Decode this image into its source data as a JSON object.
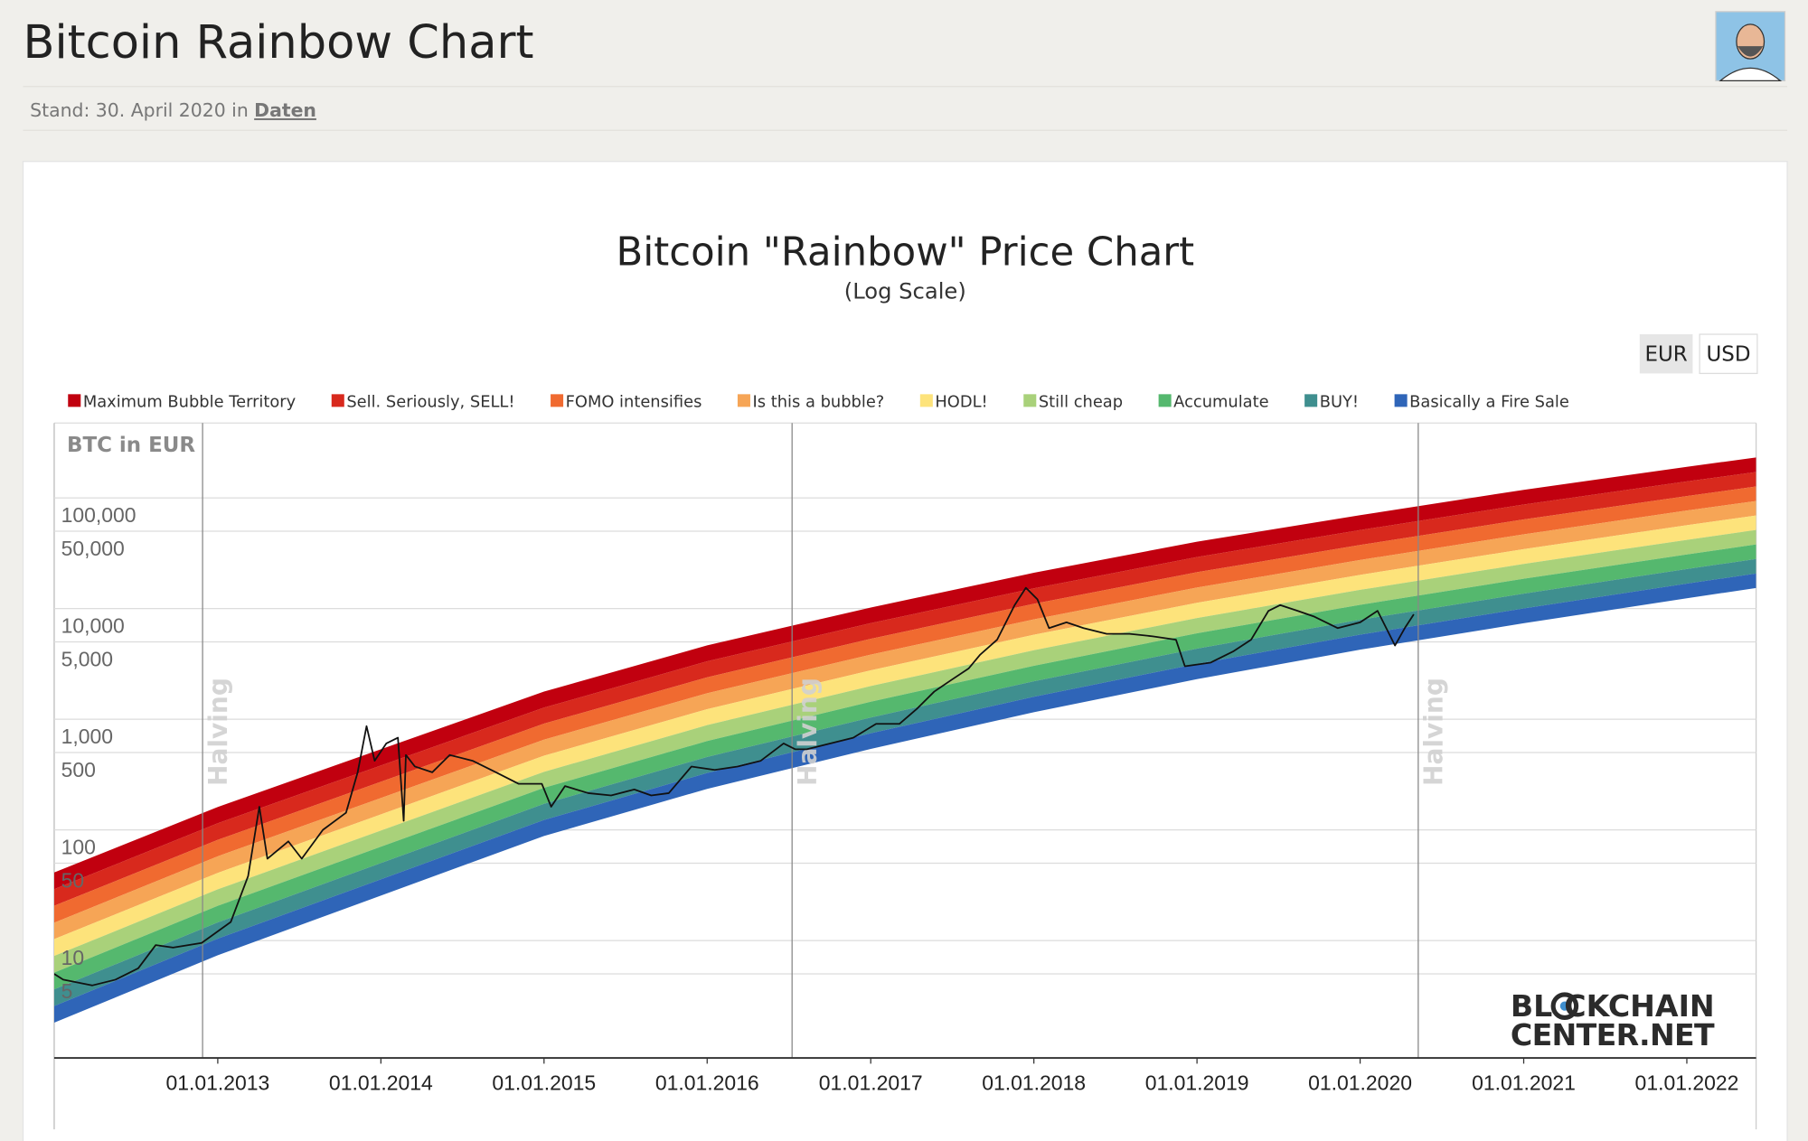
{
  "page": {
    "title": "Bitcoin Rainbow Chart",
    "meta_prefix": "Stand: 30. April 2020 in",
    "meta_link": "Daten",
    "currency_buttons": [
      "EUR",
      "USD"
    ],
    "logo": [
      "BL",
      "CKCHAIN",
      "CENTER.NET"
    ]
  },
  "chart_data": {
    "type": "line",
    "title": "Bitcoin \"Rainbow\" Price Chart",
    "subtitle": "(Log Scale)",
    "y_label": "BTC in EUR",
    "log_scale": true,
    "grid": true,
    "legend": "top",
    "xlim": [
      "2012-01-01",
      "2022-06-05"
    ],
    "ylim": [
      0.87,
      475000
    ],
    "xticks": [
      {
        "value": "2013-01-01",
        "label": "01.01.2013"
      },
      {
        "value": "2014-01-01",
        "label": "01.01.2014"
      },
      {
        "value": "2015-01-01",
        "label": "01.01.2015"
      },
      {
        "value": "2016-01-01",
        "label": "01.01.2016"
      },
      {
        "value": "2017-01-01",
        "label": "01.01.2017"
      },
      {
        "value": "2018-01-01",
        "label": "01.01.2018"
      },
      {
        "value": "2019-01-01",
        "label": "01.01.2019"
      },
      {
        "value": "2020-01-01",
        "label": "01.01.2020"
      },
      {
        "value": "2021-01-01",
        "label": "01.01.2021"
      },
      {
        "value": "2022-01-01",
        "label": "01.01.2022"
      }
    ],
    "yticks": [
      5,
      10,
      50,
      100,
      500,
      {
        "value": 1000,
        "label": "1,000"
      },
      {
        "value": 5000,
        "label": "5,000"
      },
      {
        "value": 10000,
        "label": "10,000"
      },
      {
        "value": 50000,
        "label": "50,000"
      },
      {
        "value": 100000,
        "label": "100,000"
      }
    ],
    "annotations": [
      {
        "text": "Halving",
        "x": "2012-11-28"
      },
      {
        "text": "Halving",
        "x": "2016-07-09"
      },
      {
        "text": "Halving",
        "x": "2020-05-10"
      }
    ],
    "band_x": [
      "2012-01-01",
      "2013-01-01",
      "2014-01-01",
      "2015-01-01",
      "2016-01-01",
      "2017-01-01",
      "2018-01-01",
      "2019-01-01",
      "2020-01-01",
      "2021-01-01",
      "2022-01-01",
      "2022-06-05"
    ],
    "bands": [
      {
        "name": "Maximum Bubble Territory",
        "color": "#c1000f",
        "values": [
          41.2,
          161,
          536,
          1778,
          4645,
          10233,
          21038,
          40179,
          69823,
          118304,
          190985,
          231739
        ]
      },
      {
        "name": "Sell. Seriously, SELL!",
        "color": "#d8291d",
        "values": [
          29.1,
          115,
          382,
          1273,
          3334,
          7379,
          15240,
          29242,
          51166,
          86896,
          140928,
          171394
        ]
      },
      {
        "name": "FOMO intensifies",
        "color": "#f06a30",
        "values": [
          20.6,
          81.3,
          272,
          912,
          2393,
          5321,
          11040,
          21282,
          37495,
          63825,
          103990,
          126763
        ]
      },
      {
        "name": "Is this a bubble?",
        "color": "#f6a556",
        "values": [
          14.5,
          57.7,
          194,
          653,
          1718,
          3837,
          7997,
          15489,
          27476,
          46880,
          76734,
          93754
        ]
      },
      {
        "name": "HODL!",
        "color": "#fde37b",
        "values": [
          10.3,
          40.9,
          138,
          468,
          1233,
          2767,
          5793,
          11273,
          20135,
          34434,
          56622,
          69341
        ]
      },
      {
        "name": "Still cheap",
        "color": "#a9d17a",
        "values": [
          7.26,
          29,
          98.7,
          335,
          885,
          1995,
          4197,
          8205,
          14755,
          25292,
          41781,
          51285
        ]
      },
      {
        "name": "Accumulate",
        "color": "#55b86e",
        "values": [
          5.13,
          20.6,
          70.4,
          240,
          635,
          1439,
          3040,
          5971,
          10812,
          18577,
          30830,
          37930
        ]
      },
      {
        "name": "BUY!",
        "color": "#3f8f8f",
        "values": [
          3.62,
          14.6,
          50.2,
          172,
          456,
          1037,
          2202,
          4346,
          7923,
          13645,
          22750,
          28053
        ]
      },
      {
        "name": "Basically a Fire Sale",
        "color": "#2f65b8",
        "values": [
          2.56,
          10.4,
          35.8,
          123,
          327,
          748,
          1595,
          3163,
          5806,
          10022,
          16787,
          20748
        ]
      }
    ],
    "band_floor": [
      1.81,
      7.36,
      25.5,
      88,
      235,
      539,
      1156,
      2302,
      4255,
      7362,
      12387,
      15345
    ],
    "price": {
      "color": "#111111",
      "x": [
        "2012-01-01",
        "2012-01-21",
        "2012-03-26",
        "2012-05-17",
        "2012-07-07",
        "2012-08-15",
        "2012-09-23",
        "2012-11-26",
        "2013-01-30",
        "2013-03-10",
        "2013-04-04",
        "2013-04-22",
        "2013-06-08",
        "2013-07-08",
        "2013-08-24",
        "2013-10-15",
        "2013-11-10",
        "2013-11-30",
        "2013-12-18",
        "2014-01-13",
        "2014-02-08",
        "2014-02-21",
        "2014-02-26",
        "2014-03-18",
        "2014-04-26",
        "2014-06-04",
        "2014-07-25",
        "2014-09-15",
        "2014-11-05",
        "2014-12-27",
        "2015-01-17",
        "2015-02-17",
        "2015-04-10",
        "2015-05-31",
        "2015-07-22",
        "2015-08-29",
        "2015-10-07",
        "2015-11-27",
        "2016-01-18",
        "2016-03-09",
        "2016-04-30",
        "2016-06-20",
        "2016-07-16",
        "2016-08-11",
        "2016-10-02",
        "2016-11-23",
        "2017-01-13",
        "2017-03-06",
        "2017-04-14",
        "2017-05-23",
        "2017-06-30",
        "2017-08-08",
        "2017-09-03",
        "2017-10-11",
        "2017-11-19",
        "2017-12-14",
        "2018-01-09",
        "2018-02-04",
        "2018-03-15",
        "2018-04-22",
        "2018-06-13",
        "2018-08-03",
        "2018-09-24",
        "2018-11-15",
        "2018-12-05",
        "2019-01-31",
        "2019-03-24",
        "2019-05-02",
        "2019-06-10",
        "2019-07-06",
        "2019-08-14",
        "2019-09-21",
        "2019-11-12",
        "2020-01-01",
        "2020-02-09",
        "2020-03-19",
        "2020-04-10",
        "2020-04-30"
      ],
      "values": [
        5,
        4.43,
        3.93,
        4.43,
        5.62,
        9.09,
        8.66,
        9.53,
        14.7,
        38.3,
        162,
        54.9,
        78.7,
        54.9,
        100,
        143,
        332,
        866,
        422,
        604,
        681,
        121,
        475,
        374,
        332,
        475,
        422,
        332,
        261,
        261,
        162,
        249,
        215,
        205,
        232,
        205,
        215,
        374,
        348,
        374,
        422,
        604,
        536,
        536,
        604,
        681,
        909,
        909,
        1241,
        1778,
        2259,
        2873,
        3831,
        5232,
        10750,
        15400,
        12120,
        6650,
        7500,
        6650,
        5900,
        5900,
        5620,
        5230,
        3010,
        3240,
        4120,
        5230,
        9530,
        10750,
        9530,
        8450,
        6650,
        7500,
        9530,
        4640,
        6650,
        8870
      ]
    }
  }
}
